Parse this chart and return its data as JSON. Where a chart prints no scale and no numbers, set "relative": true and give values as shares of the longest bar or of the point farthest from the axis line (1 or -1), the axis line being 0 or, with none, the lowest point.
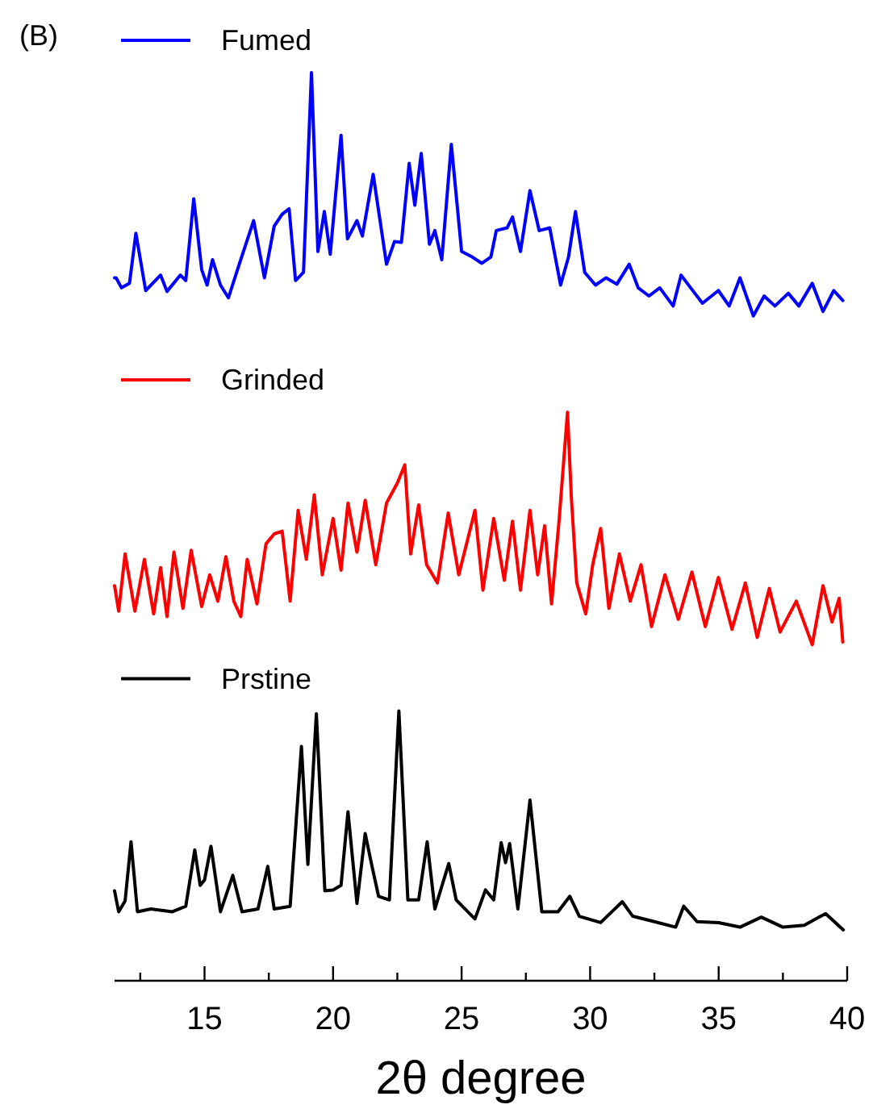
{
  "chart_data": {
    "type": "line",
    "relative": true,
    "legend": "top left",
    "xlabel": "2θ degree",
    "annotations": [
      "(B)"
    ],
    "xlim": [
      11.5,
      40
    ],
    "xticks": [
      {
        "value": 12.5,
        "label": null
      },
      15,
      {
        "value": 17.5,
        "label": null
      },
      20,
      {
        "value": 22.5,
        "label": null
      },
      25,
      {
        "value": 27.5,
        "label": null
      },
      30,
      {
        "value": 32.5,
        "label": null
      },
      35,
      {
        "value": 37.5,
        "label": null
      },
      40
    ],
    "series": [
      {
        "name": "Fumed",
        "color": "#0000ff",
        "x": [
          11.5,
          11.56,
          11.77,
          12.08,
          12.33,
          12.71,
          13.29,
          13.54,
          14.06,
          14.27,
          14.58,
          14.89,
          15.1,
          15.31,
          15.62,
          15.93,
          16.35,
          16.91,
          17.33,
          17.71,
          18.02,
          18.29,
          18.54,
          18.85,
          19.16,
          19.41,
          19.66,
          19.89,
          20.31,
          20.56,
          20.93,
          21.14,
          21.56,
          22.08,
          22.39,
          22.66,
          22.96,
          23.18,
          23.43,
          23.75,
          23.96,
          24.23,
          24.6,
          25.0,
          25.41,
          25.79,
          26.14,
          26.35,
          26.77,
          26.98,
          27.29,
          27.66,
          28.02,
          28.43,
          28.85,
          29.16,
          29.43,
          29.79,
          30.21,
          30.62,
          31.04,
          31.52,
          31.87,
          32.29,
          32.71,
          33.23,
          33.54,
          33.91,
          34.37,
          34.99,
          35.41,
          35.83,
          36.35,
          36.77,
          37.19,
          37.71,
          38.12,
          38.64,
          39.06,
          39.48,
          39.83
        ],
        "values": [
          0.774,
          0.774,
          0.763,
          0.768,
          0.823,
          0.76,
          0.777,
          0.759,
          0.777,
          0.771,
          0.861,
          0.783,
          0.766,
          0.794,
          0.766,
          0.752,
          0.789,
          0.837,
          0.774,
          0.831,
          0.844,
          0.85,
          0.771,
          0.78,
          1.0,
          0.803,
          0.847,
          0.8,
          0.931,
          0.817,
          0.837,
          0.82,
          0.888,
          0.789,
          0.814,
          0.813,
          0.9,
          0.854,
          0.911,
          0.811,
          0.826,
          0.794,
          0.921,
          0.803,
          0.797,
          0.79,
          0.797,
          0.826,
          0.829,
          0.841,
          0.803,
          0.87,
          0.826,
          0.829,
          0.766,
          0.797,
          0.847,
          0.78,
          0.766,
          0.774,
          0.767,
          0.789,
          0.763,
          0.754,
          0.763,
          0.743,
          0.777,
          0.763,
          0.746,
          0.76,
          0.743,
          0.774,
          0.732,
          0.754,
          0.743,
          0.757,
          0.743,
          0.768,
          0.737,
          0.76,
          0.749
        ]
      },
      {
        "name": "Grinded",
        "color": "#ff0000",
        "x": [
          11.5,
          11.66,
          11.91,
          12.29,
          12.66,
          13.02,
          13.29,
          13.54,
          13.81,
          14.16,
          14.48,
          14.89,
          15.2,
          15.52,
          15.83,
          16.14,
          16.41,
          16.66,
          17.04,
          17.39,
          17.71,
          18.02,
          18.33,
          18.64,
          18.96,
          19.27,
          19.58,
          20.0,
          20.31,
          20.58,
          20.93,
          21.25,
          21.66,
          22.08,
          22.5,
          22.79,
          23.02,
          23.33,
          23.64,
          24.06,
          24.48,
          24.89,
          25.52,
          25.83,
          26.25,
          26.66,
          26.98,
          27.29,
          27.66,
          27.96,
          28.23,
          28.5,
          28.79,
          29.12,
          29.27,
          29.48,
          29.83,
          30.1,
          30.41,
          30.73,
          31.14,
          31.56,
          31.98,
          32.39,
          32.91,
          33.43,
          33.96,
          34.48,
          34.99,
          35.52,
          36.04,
          36.5,
          36.97,
          37.39,
          38.02,
          38.64,
          39.06,
          39.41,
          39.69,
          39.83
        ],
        "values": [
          0.435,
          0.407,
          0.47,
          0.407,
          0.464,
          0.404,
          0.455,
          0.401,
          0.472,
          0.41,
          0.474,
          0.412,
          0.447,
          0.418,
          0.467,
          0.418,
          0.401,
          0.464,
          0.415,
          0.481,
          0.492,
          0.495,
          0.418,
          0.518,
          0.464,
          0.535,
          0.447,
          0.509,
          0.452,
          0.526,
          0.472,
          0.529,
          0.458,
          0.526,
          0.548,
          0.568,
          0.47,
          0.524,
          0.458,
          0.438,
          0.515,
          0.447,
          0.518,
          0.43,
          0.509,
          0.441,
          0.506,
          0.43,
          0.518,
          0.447,
          0.501,
          0.415,
          0.506,
          0.626,
          0.532,
          0.438,
          0.404,
          0.458,
          0.498,
          0.41,
          0.47,
          0.418,
          0.458,
          0.39,
          0.447,
          0.398,
          0.45,
          0.39,
          0.444,
          0.387,
          0.438,
          0.378,
          0.432,
          0.384,
          0.418,
          0.37,
          0.435,
          0.395,
          0.421,
          0.373
        ]
      },
      {
        "name": "Prstine",
        "color": "#000000",
        "x": [
          11.5,
          11.66,
          11.91,
          12.14,
          12.39,
          12.91,
          13.75,
          14.27,
          14.62,
          14.83,
          15.0,
          15.25,
          15.62,
          16.1,
          16.46,
          17.08,
          17.46,
          17.71,
          18.33,
          18.77,
          19.02,
          19.35,
          19.68,
          20.0,
          20.31,
          20.58,
          20.93,
          21.25,
          21.5,
          21.77,
          22.19,
          22.56,
          22.91,
          23.33,
          23.66,
          23.96,
          24.5,
          24.79,
          25.52,
          25.93,
          26.25,
          26.54,
          26.71,
          26.87,
          27.19,
          27.66,
          28.12,
          28.75,
          29.21,
          29.58,
          30.41,
          31.25,
          31.66,
          32.5,
          33.33,
          33.64,
          34.16,
          35.0,
          35.83,
          36.66,
          37.5,
          38.33,
          39.16,
          39.85
        ],
        "values": [
          0.099,
          0.076,
          0.088,
          0.153,
          0.076,
          0.079,
          0.076,
          0.082,
          0.144,
          0.105,
          0.111,
          0.148,
          0.076,
          0.116,
          0.076,
          0.079,
          0.126,
          0.079,
          0.082,
          0.258,
          0.128,
          0.294,
          0.099,
          0.1,
          0.105,
          0.186,
          0.085,
          0.162,
          0.128,
          0.093,
          0.089,
          0.297,
          0.089,
          0.089,
          0.153,
          0.079,
          0.129,
          0.089,
          0.068,
          0.1,
          0.089,
          0.152,
          0.13,
          0.151,
          0.079,
          0.199,
          0.076,
          0.076,
          0.093,
          0.071,
          0.064,
          0.087,
          0.071,
          0.065,
          0.059,
          0.082,
          0.065,
          0.064,
          0.059,
          0.07,
          0.059,
          0.061,
          0.074,
          0.056
        ]
      }
    ]
  }
}
